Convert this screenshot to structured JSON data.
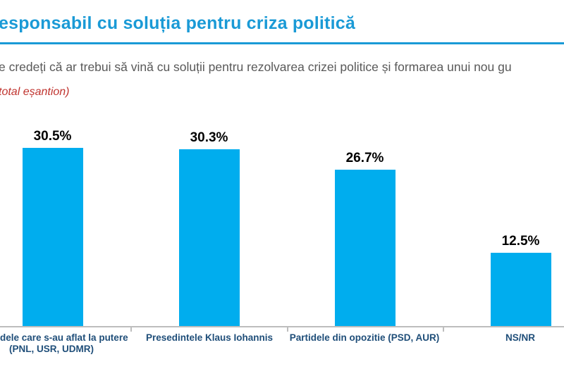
{
  "page": {
    "title": "esponsabil cu soluția pentru criza politică",
    "subtitle": "e credeți că ar trebui să vină cu soluții pentru rezolvarea crizei politice și formarea unui nou gu",
    "note": "total eșantion)"
  },
  "colors": {
    "title_blue": "#1A9AD6",
    "bar_fill": "#00ADEE",
    "category_navy": "#1F4E79",
    "subtitle_gray": "#595959",
    "note_red": "#C0342F",
    "axis_gray": "#BDBDBD",
    "value_black": "#000000"
  },
  "chart_data": {
    "type": "bar",
    "title": "esponsabil cu soluția pentru criza politică",
    "subtitle": "e credeți că ar trebui să vină cu soluții pentru rezolvarea crizei politice și formarea unui nou gu",
    "categories": [
      "dele care s-au aflat la putere (PNL, USR, UDMR)",
      "Presedintele Klaus Iohannis",
      "Partidele din opozitie (PSD, AUR)",
      "NS/NR"
    ],
    "values": [
      30.5,
      30.3,
      26.7,
      12.5
    ],
    "value_labels": [
      "30.5%",
      "30.3%",
      "26.7%",
      "12.5%"
    ],
    "category_lines": [
      [
        "dele care s-au aflat la putere",
        "(PNL, USR, UDMR)"
      ],
      [
        "Presedintele Klaus Iohannis"
      ],
      [
        "Partidele din opozitie (PSD, AUR)"
      ],
      [
        "NS/NR"
      ]
    ],
    "xlabel": "",
    "ylabel": "",
    "ylim": [
      0,
      35
    ],
    "grid": false,
    "legend": "none"
  }
}
